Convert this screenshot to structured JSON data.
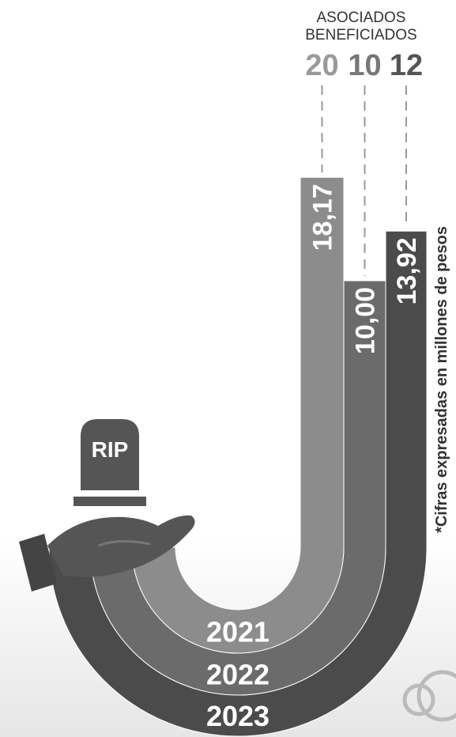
{
  "chart_data": {
    "type": "jbar",
    "categories": [
      "2021",
      "2022",
      "2023"
    ],
    "values": [
      18.17,
      10.0,
      13.92
    ],
    "value_labels": [
      "18,17",
      "10,00",
      "13,92"
    ],
    "colors": [
      "#8c8c8c",
      "#6b6b6b",
      "#4b4b4b"
    ],
    "associates": {
      "title": [
        "ASOCIADOS",
        "BENEFICIADOS"
      ],
      "values": [
        20,
        10,
        12
      ],
      "colors": [
        "#9a9a9a",
        "#777777",
        "#555555"
      ]
    },
    "note": "*Cifras expresadas en millones de pesos",
    "icon_text": "RIP"
  }
}
